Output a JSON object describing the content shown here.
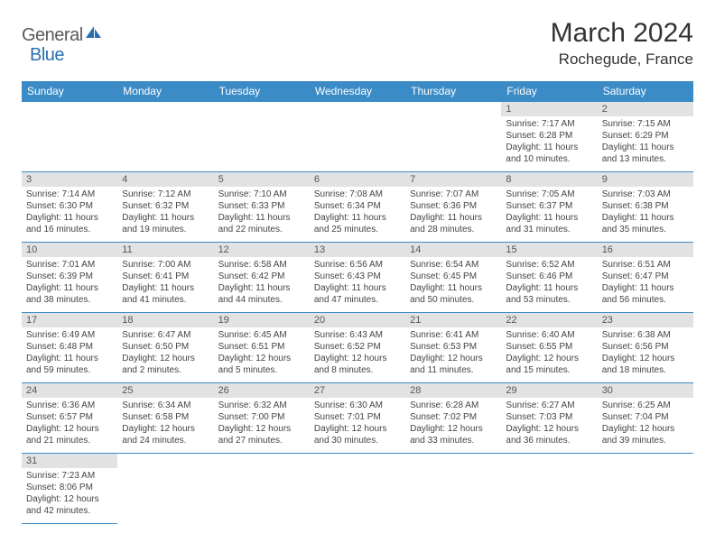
{
  "logo": {
    "text1": "General",
    "text2": "Blue"
  },
  "title": "March 2024",
  "location": "Rochegude, France",
  "colors": {
    "header_bg": "#3b8bc6",
    "header_text": "#ffffff",
    "daynum_bg": "#e2e2e2",
    "border": "#3b8bc6",
    "logo_dark": "#5a5a5a",
    "logo_blue": "#2b6fb0"
  },
  "weekdays": [
    "Sunday",
    "Monday",
    "Tuesday",
    "Wednesday",
    "Thursday",
    "Friday",
    "Saturday"
  ],
  "weeks": [
    [
      null,
      null,
      null,
      null,
      null,
      {
        "day": "1",
        "sunrise": "Sunrise: 7:17 AM",
        "sunset": "Sunset: 6:28 PM",
        "daylight": "Daylight: 11 hours and 10 minutes."
      },
      {
        "day": "2",
        "sunrise": "Sunrise: 7:15 AM",
        "sunset": "Sunset: 6:29 PM",
        "daylight": "Daylight: 11 hours and 13 minutes."
      }
    ],
    [
      {
        "day": "3",
        "sunrise": "Sunrise: 7:14 AM",
        "sunset": "Sunset: 6:30 PM",
        "daylight": "Daylight: 11 hours and 16 minutes."
      },
      {
        "day": "4",
        "sunrise": "Sunrise: 7:12 AM",
        "sunset": "Sunset: 6:32 PM",
        "daylight": "Daylight: 11 hours and 19 minutes."
      },
      {
        "day": "5",
        "sunrise": "Sunrise: 7:10 AM",
        "sunset": "Sunset: 6:33 PM",
        "daylight": "Daylight: 11 hours and 22 minutes."
      },
      {
        "day": "6",
        "sunrise": "Sunrise: 7:08 AM",
        "sunset": "Sunset: 6:34 PM",
        "daylight": "Daylight: 11 hours and 25 minutes."
      },
      {
        "day": "7",
        "sunrise": "Sunrise: 7:07 AM",
        "sunset": "Sunset: 6:36 PM",
        "daylight": "Daylight: 11 hours and 28 minutes."
      },
      {
        "day": "8",
        "sunrise": "Sunrise: 7:05 AM",
        "sunset": "Sunset: 6:37 PM",
        "daylight": "Daylight: 11 hours and 31 minutes."
      },
      {
        "day": "9",
        "sunrise": "Sunrise: 7:03 AM",
        "sunset": "Sunset: 6:38 PM",
        "daylight": "Daylight: 11 hours and 35 minutes."
      }
    ],
    [
      {
        "day": "10",
        "sunrise": "Sunrise: 7:01 AM",
        "sunset": "Sunset: 6:39 PM",
        "daylight": "Daylight: 11 hours and 38 minutes."
      },
      {
        "day": "11",
        "sunrise": "Sunrise: 7:00 AM",
        "sunset": "Sunset: 6:41 PM",
        "daylight": "Daylight: 11 hours and 41 minutes."
      },
      {
        "day": "12",
        "sunrise": "Sunrise: 6:58 AM",
        "sunset": "Sunset: 6:42 PM",
        "daylight": "Daylight: 11 hours and 44 minutes."
      },
      {
        "day": "13",
        "sunrise": "Sunrise: 6:56 AM",
        "sunset": "Sunset: 6:43 PM",
        "daylight": "Daylight: 11 hours and 47 minutes."
      },
      {
        "day": "14",
        "sunrise": "Sunrise: 6:54 AM",
        "sunset": "Sunset: 6:45 PM",
        "daylight": "Daylight: 11 hours and 50 minutes."
      },
      {
        "day": "15",
        "sunrise": "Sunrise: 6:52 AM",
        "sunset": "Sunset: 6:46 PM",
        "daylight": "Daylight: 11 hours and 53 minutes."
      },
      {
        "day": "16",
        "sunrise": "Sunrise: 6:51 AM",
        "sunset": "Sunset: 6:47 PM",
        "daylight": "Daylight: 11 hours and 56 minutes."
      }
    ],
    [
      {
        "day": "17",
        "sunrise": "Sunrise: 6:49 AM",
        "sunset": "Sunset: 6:48 PM",
        "daylight": "Daylight: 11 hours and 59 minutes."
      },
      {
        "day": "18",
        "sunrise": "Sunrise: 6:47 AM",
        "sunset": "Sunset: 6:50 PM",
        "daylight": "Daylight: 12 hours and 2 minutes."
      },
      {
        "day": "19",
        "sunrise": "Sunrise: 6:45 AM",
        "sunset": "Sunset: 6:51 PM",
        "daylight": "Daylight: 12 hours and 5 minutes."
      },
      {
        "day": "20",
        "sunrise": "Sunrise: 6:43 AM",
        "sunset": "Sunset: 6:52 PM",
        "daylight": "Daylight: 12 hours and 8 minutes."
      },
      {
        "day": "21",
        "sunrise": "Sunrise: 6:41 AM",
        "sunset": "Sunset: 6:53 PM",
        "daylight": "Daylight: 12 hours and 11 minutes."
      },
      {
        "day": "22",
        "sunrise": "Sunrise: 6:40 AM",
        "sunset": "Sunset: 6:55 PM",
        "daylight": "Daylight: 12 hours and 15 minutes."
      },
      {
        "day": "23",
        "sunrise": "Sunrise: 6:38 AM",
        "sunset": "Sunset: 6:56 PM",
        "daylight": "Daylight: 12 hours and 18 minutes."
      }
    ],
    [
      {
        "day": "24",
        "sunrise": "Sunrise: 6:36 AM",
        "sunset": "Sunset: 6:57 PM",
        "daylight": "Daylight: 12 hours and 21 minutes."
      },
      {
        "day": "25",
        "sunrise": "Sunrise: 6:34 AM",
        "sunset": "Sunset: 6:58 PM",
        "daylight": "Daylight: 12 hours and 24 minutes."
      },
      {
        "day": "26",
        "sunrise": "Sunrise: 6:32 AM",
        "sunset": "Sunset: 7:00 PM",
        "daylight": "Daylight: 12 hours and 27 minutes."
      },
      {
        "day": "27",
        "sunrise": "Sunrise: 6:30 AM",
        "sunset": "Sunset: 7:01 PM",
        "daylight": "Daylight: 12 hours and 30 minutes."
      },
      {
        "day": "28",
        "sunrise": "Sunrise: 6:28 AM",
        "sunset": "Sunset: 7:02 PM",
        "daylight": "Daylight: 12 hours and 33 minutes."
      },
      {
        "day": "29",
        "sunrise": "Sunrise: 6:27 AM",
        "sunset": "Sunset: 7:03 PM",
        "daylight": "Daylight: 12 hours and 36 minutes."
      },
      {
        "day": "30",
        "sunrise": "Sunrise: 6:25 AM",
        "sunset": "Sunset: 7:04 PM",
        "daylight": "Daylight: 12 hours and 39 minutes."
      }
    ],
    [
      {
        "day": "31",
        "sunrise": "Sunrise: 7:23 AM",
        "sunset": "Sunset: 8:06 PM",
        "daylight": "Daylight: 12 hours and 42 minutes."
      },
      null,
      null,
      null,
      null,
      null,
      null
    ]
  ]
}
